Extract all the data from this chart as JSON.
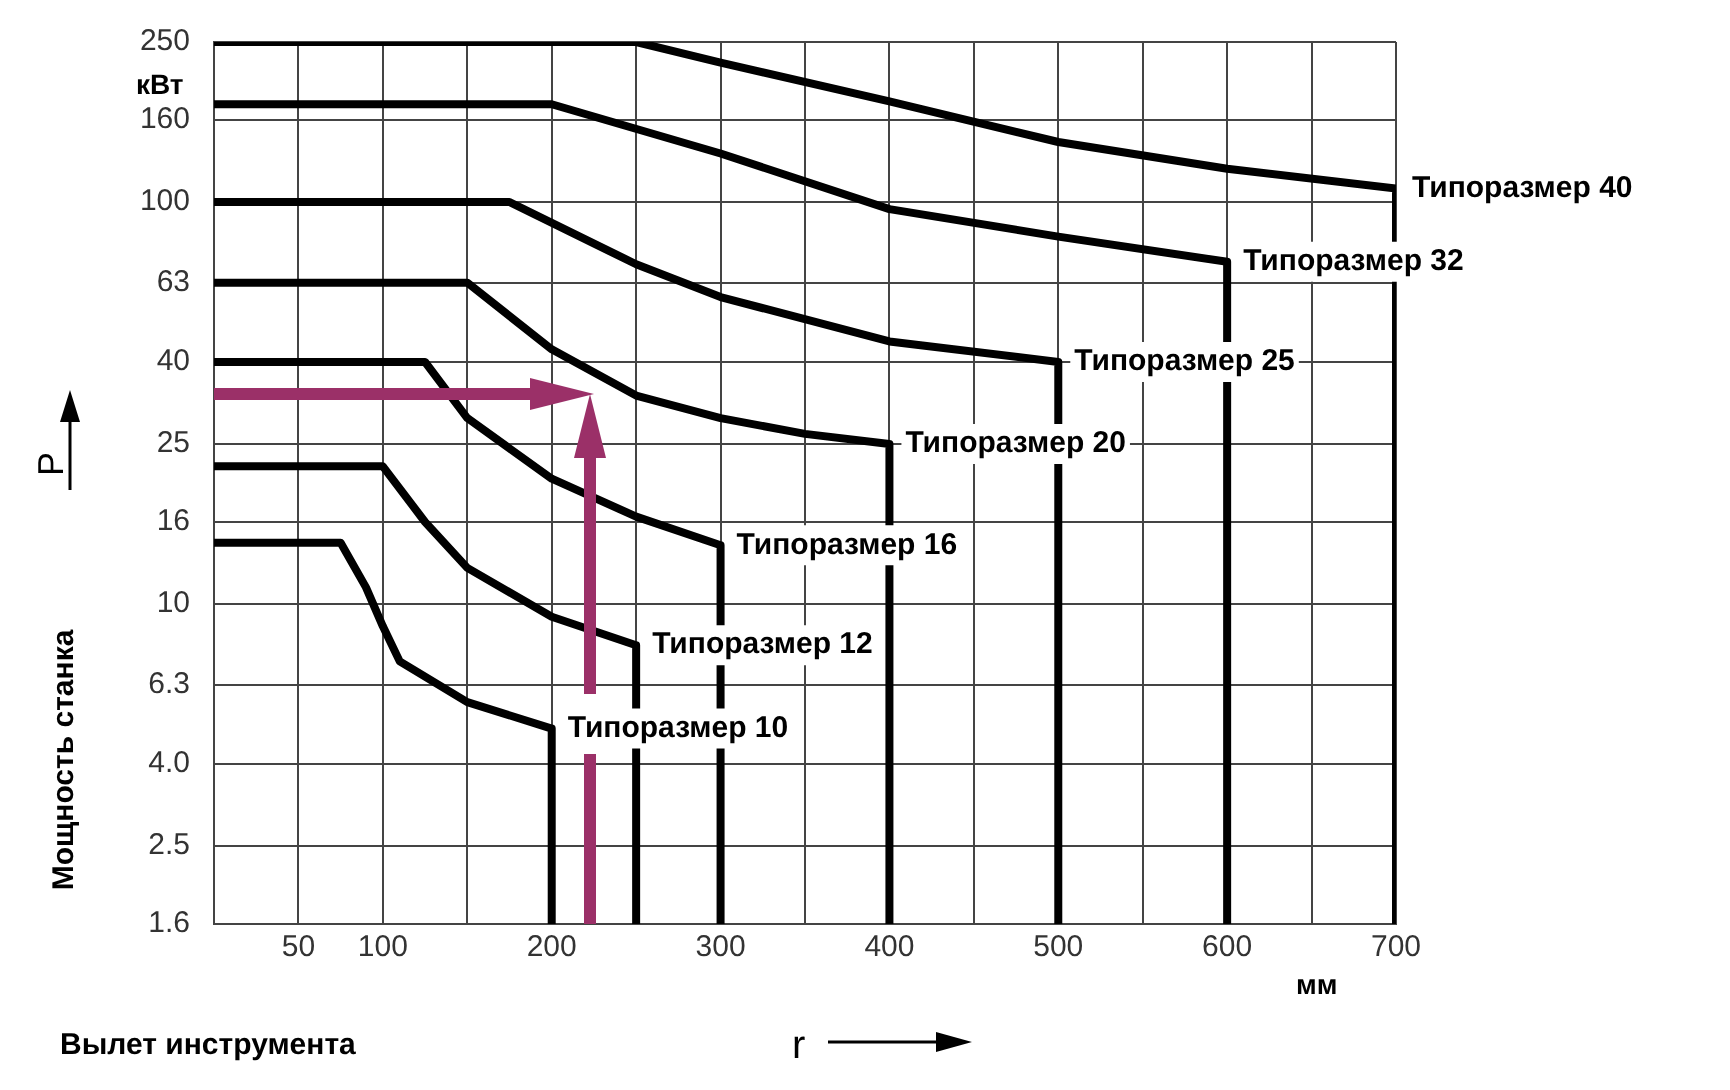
{
  "chart_data": {
    "type": "line",
    "xlabel": "Вылет инструмента",
    "ylabel": "Мощность станка",
    "annotations": [
      "кВт",
      "мм",
      "P",
      "r"
    ],
    "xlim": [
      0,
      700
    ],
    "xticks": [
      {
        "value": 0,
        "label": null
      },
      50,
      100,
      {
        "value": 150,
        "label": null
      },
      200,
      {
        "value": 250,
        "label": null
      },
      300,
      {
        "value": 350,
        "label": null
      },
      400,
      {
        "value": 450,
        "label": null
      },
      500,
      {
        "value": 550,
        "label": null
      },
      600,
      {
        "value": 650,
        "label": null
      },
      700
    ],
    "ylim": [
      1.6,
      250
    ],
    "yticks": [
      1.6,
      2.5,
      {
        "value": 4,
        "label": "4.0"
      },
      6.3,
      10,
      16,
      25,
      40,
      63,
      100,
      160,
      250
    ],
    "log": "y",
    "grid": true,
    "marker": "none",
    "line_style": "solid",
    "series": [
      {
        "name": "Типоразмер 10",
        "color": "#000000",
        "x": [
          0,
          75,
          90,
          100,
          110,
          150,
          200,
          200
        ],
        "values": [
          14.2,
          14.2,
          11,
          8.8,
          7.2,
          5.7,
          4.9,
          1.6
        ]
      },
      {
        "name": "Типоразмер 12",
        "color": "#000000",
        "x": [
          0,
          100,
          125,
          150,
          200,
          250,
          250
        ],
        "values": [
          22,
          22,
          16,
          12.3,
          9.3,
          7.9,
          1.6
        ]
      },
      {
        "name": "Типоразмер 16",
        "color": "#000000",
        "x": [
          0,
          125,
          150,
          200,
          250,
          300,
          300
        ],
        "values": [
          40,
          40,
          29,
          20.5,
          16.5,
          14,
          1.6
        ]
      },
      {
        "name": "Типоразмер 20",
        "color": "#000000",
        "x": [
          0,
          150,
          200,
          250,
          300,
          350,
          400,
          400
        ],
        "values": [
          63,
          63,
          43,
          33,
          29,
          26.5,
          25,
          1.6
        ]
      },
      {
        "name": "Типоразмер 25",
        "color": "#000000",
        "x": [
          0,
          175,
          250,
          300,
          400,
          500,
          500
        ],
        "values": [
          100,
          100,
          70,
          58,
          45,
          40,
          1.6
        ]
      },
      {
        "name": "Типоразмер 32",
        "color": "#000000",
        "x": [
          0,
          200,
          300,
          400,
          500,
          600,
          600
        ],
        "values": [
          175,
          175,
          132,
          96,
          82,
          71,
          1.6
        ]
      },
      {
        "name": "Типоразмер 40",
        "color": "#000000",
        "x": [
          0,
          250,
          300,
          400,
          500,
          600,
          700,
          700
        ],
        "values": [
          250,
          250,
          222,
          178,
          141,
          121,
          108,
          1.6
        ]
      }
    ]
  }
}
